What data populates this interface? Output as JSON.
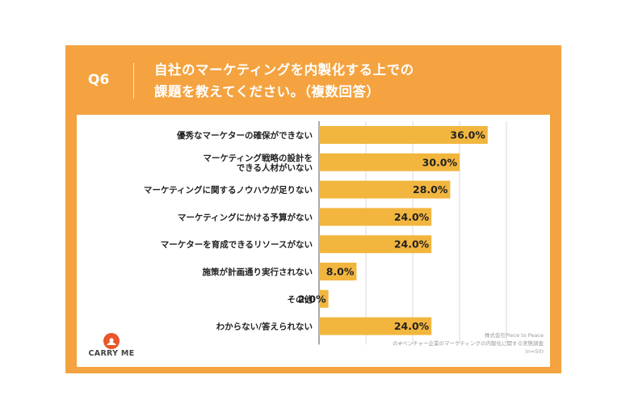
{
  "header": {
    "label": "Q6",
    "title_line1": "自社のマーケティングを内製化する上での",
    "title_line2": "課題を教えてください。（複数回答）"
  },
  "colors": {
    "accent": "#f4a340",
    "bar": "#f2b63f",
    "logo_mark": "#e8562a"
  },
  "logo": {
    "text": "CARRY ME",
    "icon": "sun-logo-icon"
  },
  "source": {
    "line1": "株式会社Piece to Peace",
    "line2": "の#ベンチャー企業のマーケティングの内製化に関する実態調査",
    "line3": "(n=50)"
  },
  "chart_data": {
    "type": "bar",
    "orientation": "horizontal",
    "categories": [
      [
        "優秀なマーケターの確保ができない"
      ],
      [
        "マーケティング戦略の設計を",
        "できる人材がいない"
      ],
      [
        "マーケティングに関するノウハウが足りない"
      ],
      [
        "マーケティングにかける予算がない"
      ],
      [
        "マーケターを育成できるリソースがない"
      ],
      [
        "施策が計画通り実行されない"
      ],
      [
        "その他"
      ],
      [
        "わからない/答えられない"
      ]
    ],
    "values": [
      36.0,
      30.0,
      28.0,
      24.0,
      24.0,
      8.0,
      2.0,
      24.0
    ],
    "value_labels": [
      "36.0%",
      "30.0%",
      "28.0%",
      "24.0%",
      "24.0%",
      "8.0%",
      "2.0%",
      "24.0%"
    ],
    "xlim": [
      0,
      50
    ],
    "grid": true
  }
}
